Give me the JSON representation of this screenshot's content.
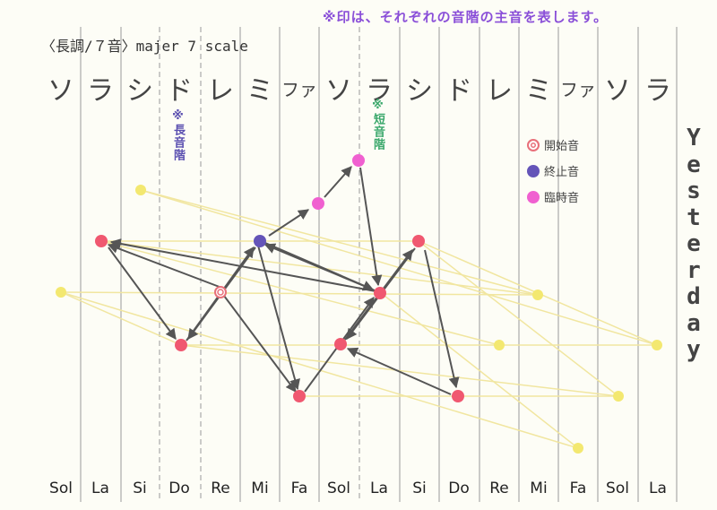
{
  "note": "※印は、それぞれの音階の主音を表します。",
  "title": "〈長調/７音〉majer 7 scale",
  "kana_scale": [
    "ソ",
    "ラ",
    "シ",
    "ド",
    "レ",
    "ミ",
    "ファ",
    "ソ",
    "ラ",
    "シ",
    "ド",
    "レ",
    "ミ",
    "ファ",
    "ソ",
    "ラ"
  ],
  "solfege_scale": [
    "Sol",
    "La",
    "Si",
    "Do",
    "Re",
    "Mi",
    "Fa",
    "Sol",
    "La",
    "Si",
    "Do",
    "Re",
    "Mi",
    "Fa",
    "Sol",
    "La"
  ],
  "major_label": "※長音階",
  "minor_label": "※短音階",
  "legend": [
    {
      "label": "開始音",
      "type": "start",
      "color": "#e8707a"
    },
    {
      "label": "終止音",
      "type": "end",
      "color": "#6454b8"
    },
    {
      "label": "臨時音",
      "type": "accidental",
      "color": "#f060d0"
    }
  ],
  "song_title": "Yesterday",
  "colors": {
    "pink": "#f05870",
    "purple": "#6454b8",
    "magenta": "#f060d0",
    "yellow": "#f3e870",
    "yellow_line": "#f1e6a0",
    "arrow": "#555555"
  }
}
